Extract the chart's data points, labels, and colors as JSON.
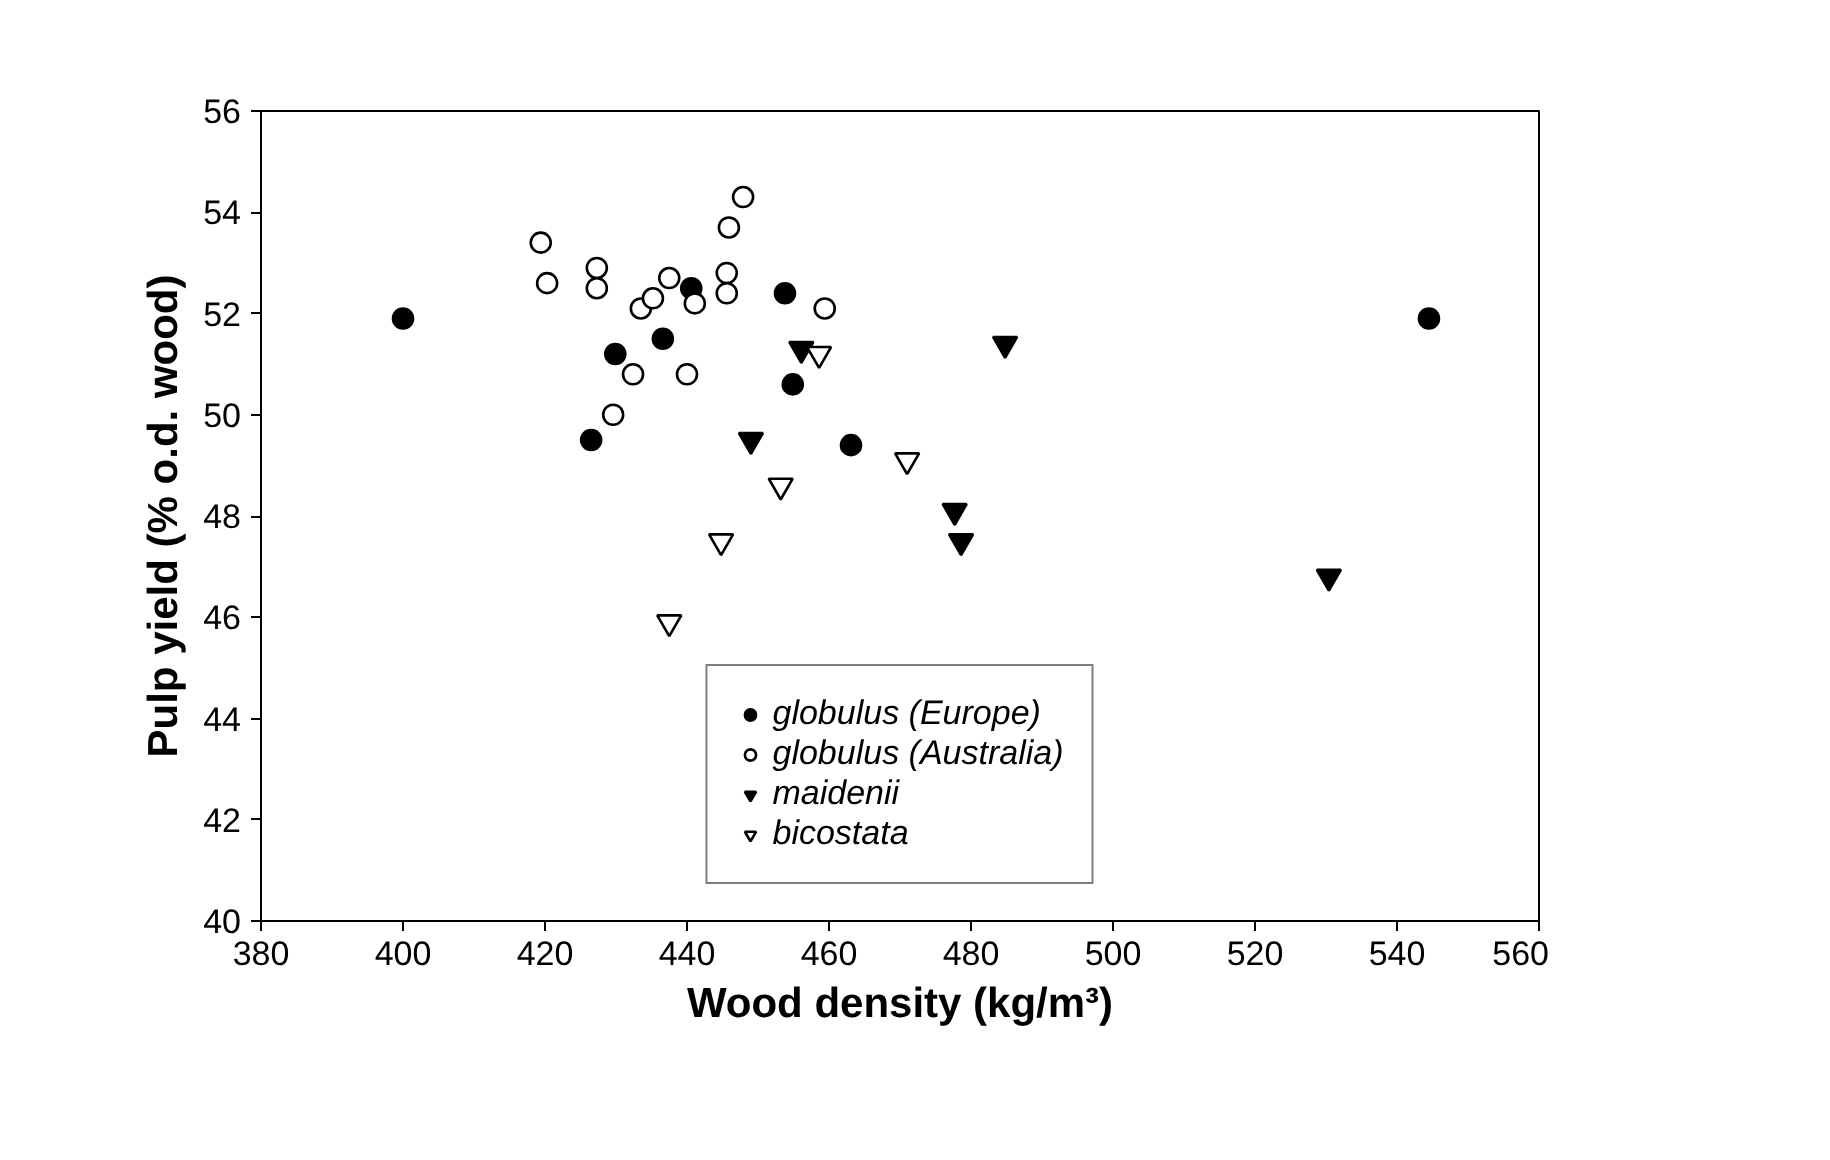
{
  "chart_data": {
    "type": "scatter",
    "xlabel": "Wood density (kg/m³)",
    "ylabel": "Pulp yield (% o.d. wood)",
    "xlim": [
      380,
      560
    ],
    "xticks": [
      380,
      400,
      420,
      440,
      460,
      480,
      500,
      520,
      540,
      560
    ],
    "ylim": [
      40,
      56
    ],
    "yticks": [
      40,
      42,
      44,
      46,
      48,
      50,
      52,
      54,
      56
    ],
    "grid": false,
    "legend": "bottom",
    "series": [
      {
        "name": "globulus (Europe)",
        "color": "#000000",
        "marker": "circle",
        "x": [
          400,
          429.9,
          436.6,
          426.5,
          453.8,
          454.9,
          463.1,
          440.6,
          544.5
        ],
        "values": [
          51.9,
          51.2,
          51.5,
          49.5,
          52.4,
          50.6,
          49.4,
          52.5,
          51.9
        ]
      },
      {
        "name": "globulus (Australia)",
        "color": "#ffffff",
        "marker": "circle",
        "x": [
          447.9,
          445.9,
          419.4,
          420.3,
          427.3,
          427.3,
          437.5,
          433.5,
          435.2,
          441.1,
          445.6,
          445.6,
          459.4,
          432.4,
          440.0,
          429.6
        ],
        "values": [
          54.3,
          53.7,
          53.4,
          52.6,
          52.9,
          52.5,
          52.7,
          52.1,
          52.3,
          52.2,
          52.8,
          52.4,
          52.1,
          50.8,
          50.8,
          50.0
        ]
      },
      {
        "name": "maidenii",
        "color": "#000000",
        "marker": "triangle",
        "x": [
          456.1,
          449.0,
          484.8,
          477.7,
          478.6,
          530.4
        ],
        "values": [
          51.3,
          49.5,
          51.4,
          48.1,
          47.5,
          46.8
        ]
      },
      {
        "name": "bicostata",
        "color": "#ffffff",
        "marker": "triangle",
        "x": [
          458.6,
          471.0,
          453.2,
          444.8,
          437.5
        ],
        "values": [
          51.2,
          49.1,
          48.6,
          47.5,
          45.9
        ]
      }
    ]
  }
}
